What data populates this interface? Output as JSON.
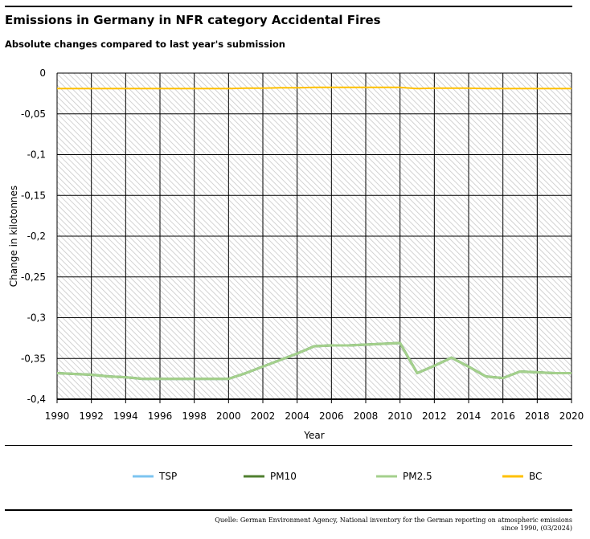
{
  "header": {
    "title": "Emissions in Germany in NFR category Accidental Fires",
    "subtitle": "Absolute changes compared to last year's submission"
  },
  "source": {
    "line1": "Quelle: German Environment Agency, National inventory for the German reporting on atmospheric emissions",
    "line2": "since 1990, (03/2024)"
  },
  "chart_data": {
    "type": "line",
    "title": "Emissions in Germany in NFR category Accidental Fires",
    "xlabel": "Year",
    "ylabel": "Change in kilotonnes",
    "xlim": [
      1990,
      2020
    ],
    "ylim": [
      -0.4,
      0
    ],
    "xticks": [
      "1990",
      "1992",
      "1994",
      "1996",
      "1998",
      "2000",
      "2002",
      "2004",
      "2006",
      "2008",
      "2010",
      "2012",
      "2014",
      "2016",
      "2018",
      "2020"
    ],
    "yticks": [
      "0",
      "-0,05",
      "-0,1",
      "-0,15",
      "-0,2",
      "-0,25",
      "-0,3",
      "-0,35",
      "-0,4"
    ],
    "grid": true,
    "legend": "bottom",
    "x": [
      1990,
      1991,
      1992,
      1993,
      1994,
      1995,
      1996,
      1997,
      1998,
      1999,
      2000,
      2001,
      2002,
      2003,
      2004,
      2005,
      2006,
      2007,
      2008,
      2009,
      2010,
      2011,
      2012,
      2013,
      2014,
      2015,
      2016,
      2017,
      2018,
      2019,
      2020
    ],
    "series": [
      {
        "name": "TSP",
        "color": "#7cc4f0",
        "values": [
          -0.368,
          -0.369,
          -0.37,
          -0.372,
          -0.373,
          -0.375,
          -0.375,
          -0.375,
          -0.375,
          -0.375,
          -0.375,
          -0.368,
          -0.36,
          -0.352,
          -0.344,
          -0.335,
          -0.334,
          -0.334,
          -0.333,
          -0.332,
          -0.331,
          -0.368,
          -0.359,
          -0.349,
          -0.36,
          -0.372,
          -0.374,
          -0.366,
          -0.367,
          -0.368,
          -0.368
        ]
      },
      {
        "name": "PM10",
        "color": "#4f7f2f",
        "values": [
          -0.368,
          -0.369,
          -0.37,
          -0.372,
          -0.373,
          -0.375,
          -0.375,
          -0.375,
          -0.375,
          -0.375,
          -0.375,
          -0.368,
          -0.36,
          -0.352,
          -0.344,
          -0.335,
          -0.334,
          -0.334,
          -0.333,
          -0.332,
          -0.331,
          -0.368,
          -0.359,
          -0.349,
          -0.36,
          -0.372,
          -0.374,
          -0.366,
          -0.367,
          -0.368,
          -0.368
        ]
      },
      {
        "name": "PM2.5",
        "color": "#a4d08c",
        "values": [
          -0.368,
          -0.369,
          -0.37,
          -0.372,
          -0.373,
          -0.375,
          -0.375,
          -0.375,
          -0.375,
          -0.375,
          -0.375,
          -0.368,
          -0.36,
          -0.352,
          -0.344,
          -0.335,
          -0.334,
          -0.334,
          -0.333,
          -0.332,
          -0.331,
          -0.368,
          -0.359,
          -0.349,
          -0.36,
          -0.372,
          -0.374,
          -0.366,
          -0.367,
          -0.368,
          -0.368
        ]
      },
      {
        "name": "BC",
        "color": "#ffc000",
        "values": [
          -0.019,
          -0.019,
          -0.019,
          -0.019,
          -0.019,
          -0.019,
          -0.019,
          -0.019,
          -0.019,
          -0.019,
          -0.019,
          -0.0185,
          -0.0185,
          -0.018,
          -0.018,
          -0.0175,
          -0.0175,
          -0.0175,
          -0.0175,
          -0.0175,
          -0.0175,
          -0.019,
          -0.0185,
          -0.0185,
          -0.0185,
          -0.019,
          -0.019,
          -0.019,
          -0.019,
          -0.019,
          -0.019
        ]
      }
    ]
  }
}
